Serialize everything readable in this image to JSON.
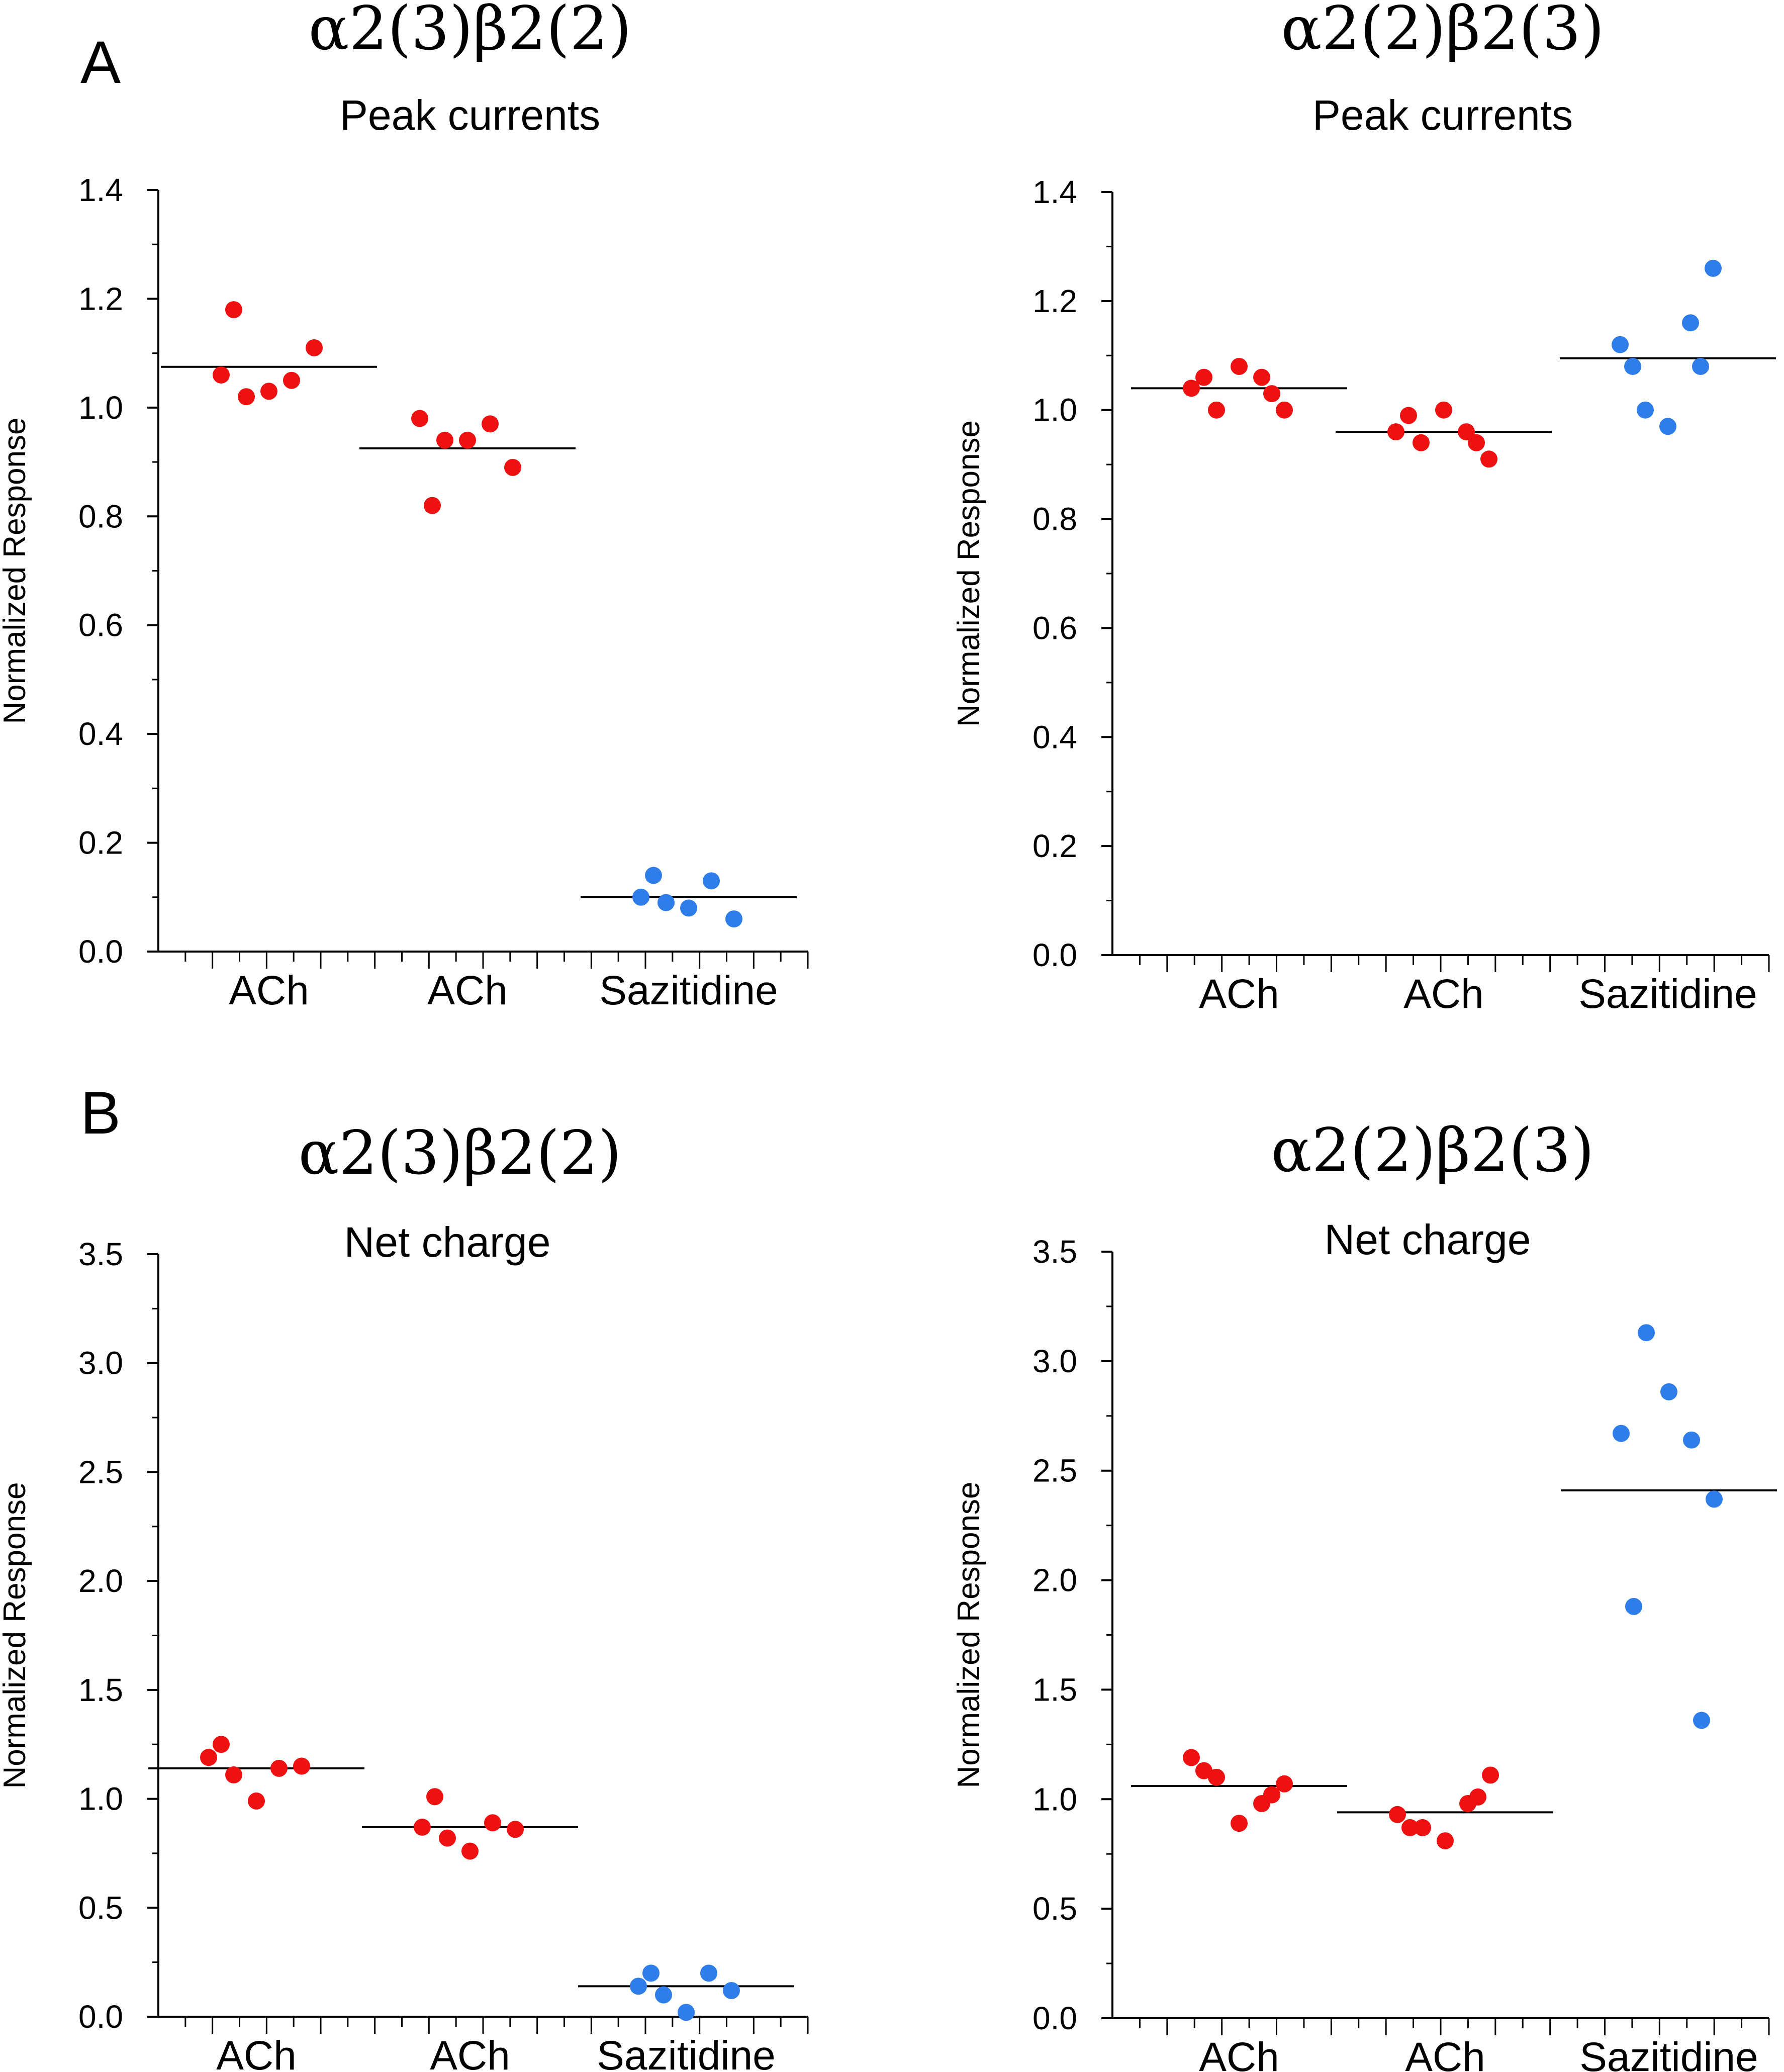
{
  "panel_labels": [
    "A",
    "B"
  ],
  "colors": {
    "ach": "#ee1111",
    "sazitidine": "#2f7de8",
    "axis": "#000000",
    "mean_line": "#000000"
  },
  "chart_data": [
    {
      "type": "scatter",
      "construct": "α2(3)β2(2)",
      "title": "Peak currents",
      "ylabel": "Normalized Response",
      "xlabel": "",
      "categories": [
        "ACh",
        "ACh",
        "Sazitidine"
      ],
      "ylim": [
        0,
        1.4
      ],
      "yticks": [
        "0.0",
        "0.2",
        "0.4",
        "0.6",
        "0.8",
        "1.0",
        "1.2",
        "1.4"
      ],
      "grid": false,
      "series": [
        {
          "color_key": "ach",
          "category": 0,
          "values": [
            1.06,
            1.02,
            1.03,
            1.05,
            1.11,
            1.18
          ],
          "mean": 1.075
        },
        {
          "color_key": "ach",
          "category": 1,
          "values": [
            0.98,
            0.94,
            0.94,
            0.97,
            0.89,
            0.82
          ],
          "mean": 0.925
        },
        {
          "color_key": "sazitidine",
          "category": 2,
          "values": [
            0.1,
            0.09,
            0.08,
            0.13,
            0.06,
            0.14
          ],
          "mean": 0.1
        }
      ]
    },
    {
      "type": "scatter",
      "construct": "α2(2)β2(3)",
      "title": "Peak currents",
      "ylabel": "Normalized Response",
      "xlabel": "",
      "categories": [
        "ACh",
        "ACh",
        "Sazitidine"
      ],
      "ylim": [
        0,
        1.4
      ],
      "yticks": [
        "0.0",
        "0.2",
        "0.4",
        "0.6",
        "0.8",
        "1.0",
        "1.2",
        "1.4"
      ],
      "grid": false,
      "series": [
        {
          "color_key": "ach",
          "category": 0,
          "values": [
            1.04,
            1.0,
            1.08,
            1.06,
            1.0,
            1.06,
            1.03
          ],
          "mean": 1.04
        },
        {
          "color_key": "ach",
          "category": 1,
          "values": [
            0.96,
            0.94,
            1.0,
            0.96,
            0.91,
            0.99,
            0.94
          ],
          "mean": 0.96
        },
        {
          "color_key": "sazitidine",
          "category": 2,
          "values": [
            1.12,
            1.0,
            0.97,
            1.16,
            1.26,
            1.08,
            1.08
          ],
          "mean": 1.095
        }
      ]
    },
    {
      "type": "scatter",
      "construct": "α2(3)β2(2)",
      "title": "Net charge",
      "ylabel": "Normalized Response",
      "xlabel": "",
      "categories": [
        "ACh",
        "ACh",
        "Sazitidine"
      ],
      "ylim": [
        0,
        3.5
      ],
      "yticks": [
        "0.0",
        "0.5",
        "1.0",
        "1.5",
        "2.0",
        "2.5",
        "3.0",
        "3.5"
      ],
      "grid": false,
      "series": [
        {
          "color_key": "ach",
          "category": 0,
          "values": [
            1.19,
            1.11,
            0.99,
            1.14,
            1.15,
            1.25
          ],
          "mean": 1.14
        },
        {
          "color_key": "ach",
          "category": 1,
          "values": [
            0.87,
            0.82,
            0.76,
            0.89,
            0.86,
            1.01
          ],
          "mean": 0.87
        },
        {
          "color_key": "sazitidine",
          "category": 2,
          "values": [
            0.14,
            0.1,
            0.02,
            0.2,
            0.12,
            0.2
          ],
          "mean": 0.14
        }
      ]
    },
    {
      "type": "scatter",
      "construct": "α2(2)β2(3)",
      "title": "Net charge",
      "ylabel": "Normalized Response",
      "xlabel": "",
      "categories": [
        "ACh",
        "ACh",
        "Sazitidine"
      ],
      "ylim": [
        0,
        3.5
      ],
      "yticks": [
        "0.0",
        "0.5",
        "1.0",
        "1.5",
        "2.0",
        "2.5",
        "3.0",
        "3.5"
      ],
      "grid": false,
      "series": [
        {
          "color_key": "ach",
          "category": 0,
          "values": [
            1.19,
            1.1,
            0.89,
            0.98,
            1.07,
            1.13,
            1.02
          ],
          "mean": 1.06
        },
        {
          "color_key": "ach",
          "category": 1,
          "values": [
            0.93,
            0.87,
            0.81,
            0.98,
            1.11,
            0.87,
            1.01
          ],
          "mean": 0.94
        },
        {
          "color_key": "sazitidine",
          "category": 2,
          "values": [
            2.67,
            3.13,
            2.86,
            2.64,
            2.37,
            1.88,
            1.36
          ],
          "mean": 2.41
        }
      ]
    }
  ]
}
